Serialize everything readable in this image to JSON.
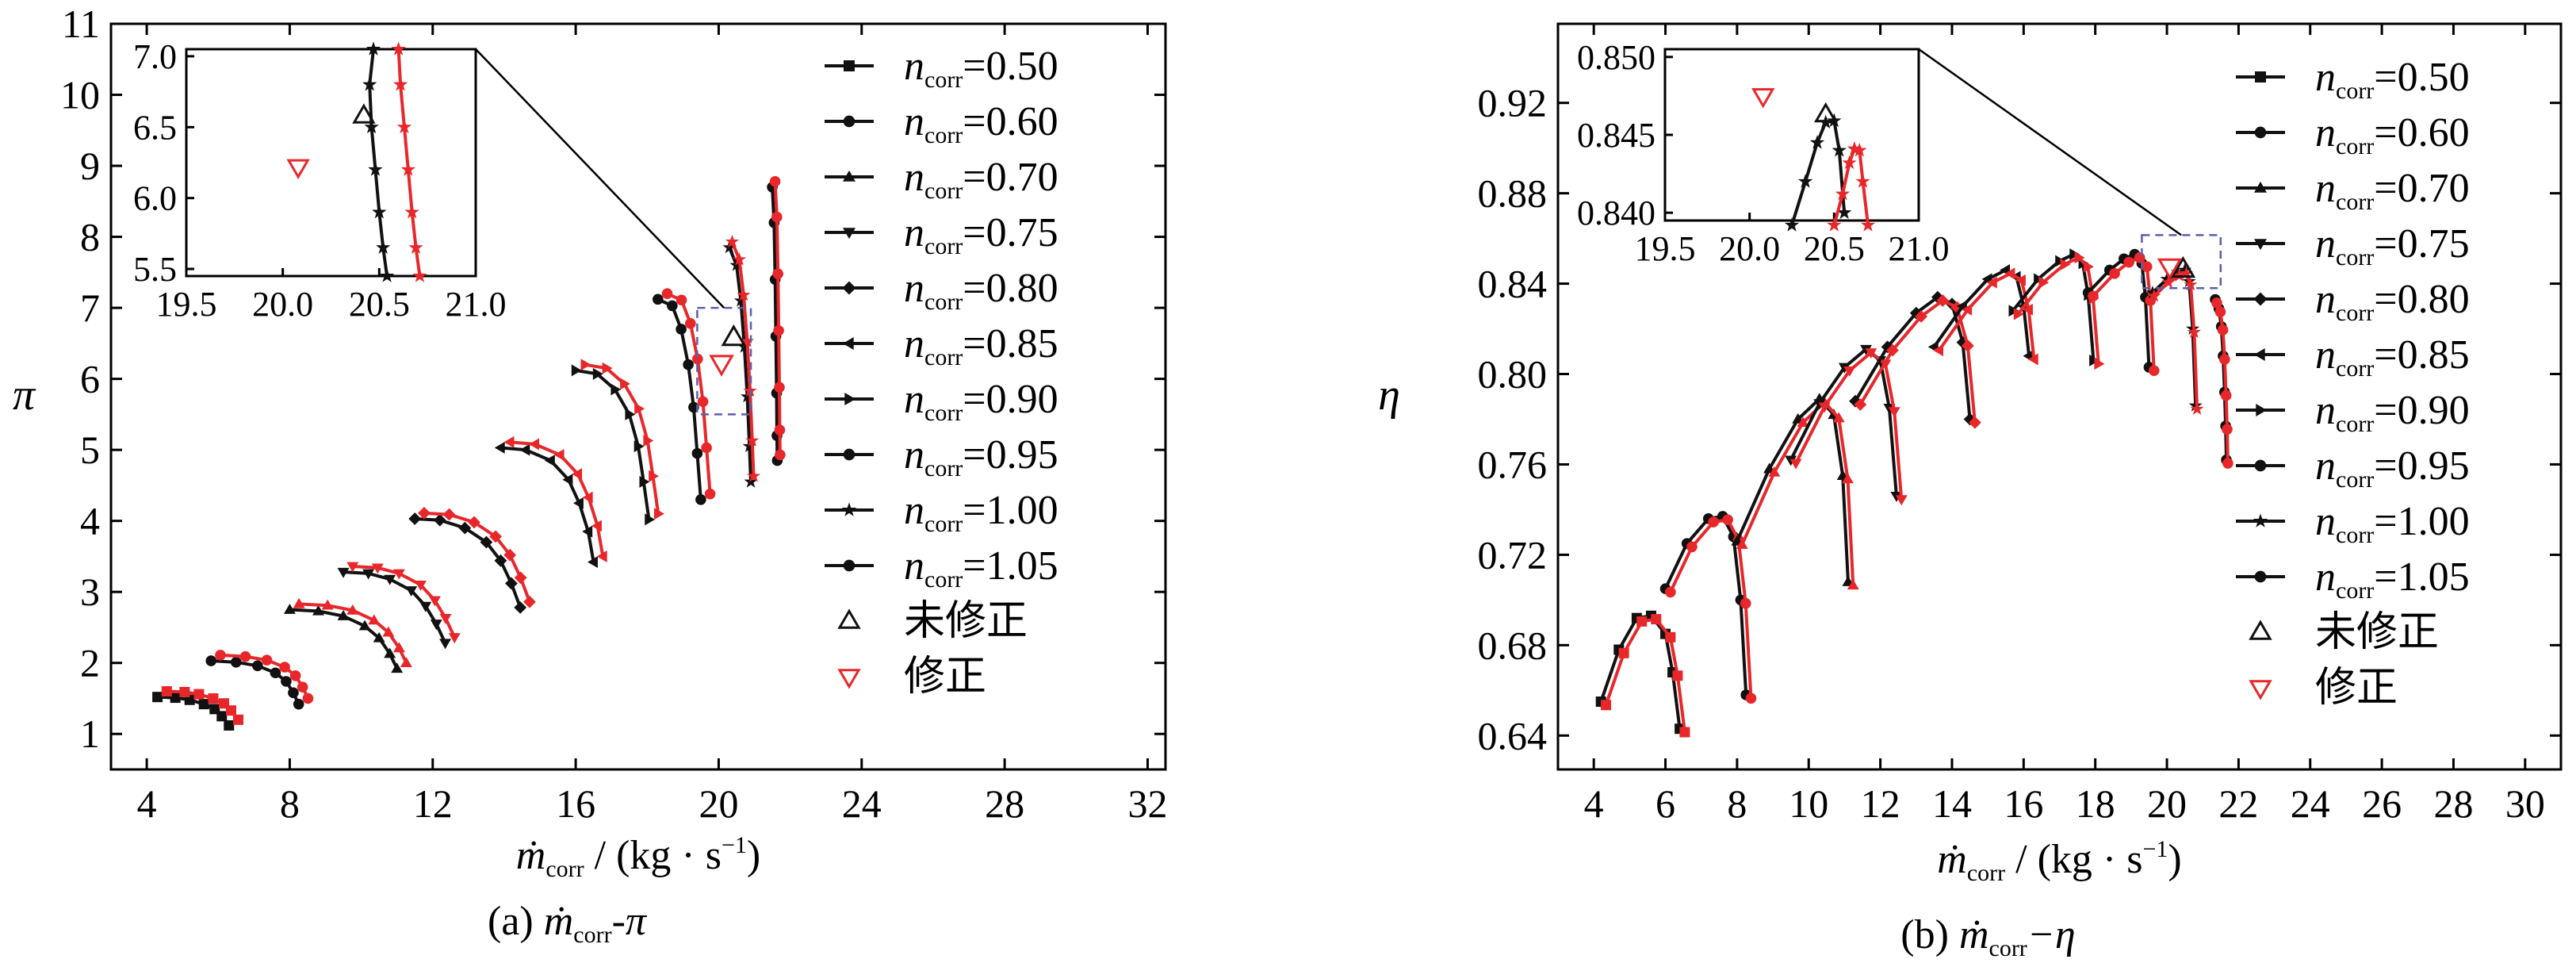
{
  "colors": {
    "uncorrected": "#111111",
    "corrected": "#e8272b",
    "frame": "#000000",
    "zoom_box": "#5b5fa8"
  },
  "legend": {
    "speed_var": "n",
    "speed_sub": "corr",
    "speeds": [
      "=0.50",
      "=0.60",
      "=0.70",
      "=0.75",
      "=0.80",
      "=0.85",
      "=0.90",
      "=0.95",
      "=1.00",
      "=1.05"
    ],
    "marker_icons": [
      "square-icon",
      "circle-icon",
      "triangle-up-icon",
      "triangle-down-icon",
      "diamond-icon",
      "triangle-left-icon",
      "triangle-right-icon",
      "circle-icon",
      "star-icon",
      "circle-icon"
    ],
    "uncorrected_label": "未修正",
    "corrected_label": "修正"
  },
  "chart_data": [
    {
      "id": "a",
      "type": "line",
      "caption_prefix": "(a) ",
      "caption_var": "ṁ",
      "caption_sub": "corr",
      "caption_suffix": "-π",
      "xlabel_var": "ṁ",
      "xlabel_sub": "corr",
      "xlabel_unit": " / (kg · s",
      "xlabel_exp": "−1",
      "xlabel_close": ")",
      "ylabel": "π",
      "xlim": [
        3,
        32.5
      ],
      "ylim": [
        0.5,
        11
      ],
      "xticks": [
        "4",
        "8",
        "12",
        "16",
        "20",
        "24",
        "28",
        "32"
      ],
      "yticks": [
        "1",
        "2",
        "3",
        "4",
        "5",
        "6",
        "7",
        "8",
        "9",
        "10",
        "11"
      ],
      "series": [
        {
          "speed": "0.50",
          "x": [
            4.3,
            4.8,
            5.2,
            5.6,
            5.9,
            6.1,
            6.3
          ],
          "y": [
            1.52,
            1.51,
            1.48,
            1.42,
            1.35,
            1.25,
            1.12
          ]
        },
        {
          "speed": "0.60",
          "x": [
            5.8,
            6.5,
            7.1,
            7.6,
            7.9,
            8.1,
            8.25
          ],
          "y": [
            2.03,
            2.01,
            1.96,
            1.86,
            1.74,
            1.58,
            1.42
          ]
        },
        {
          "speed": "0.70",
          "x": [
            8.0,
            8.8,
            9.5,
            10.1,
            10.5,
            10.8,
            11.0
          ],
          "y": [
            2.75,
            2.73,
            2.66,
            2.52,
            2.35,
            2.13,
            1.92
          ]
        },
        {
          "speed": "0.75",
          "x": [
            9.5,
            10.2,
            10.8,
            11.4,
            11.8,
            12.1,
            12.35
          ],
          "y": [
            3.28,
            3.26,
            3.18,
            3.02,
            2.8,
            2.55,
            2.28
          ]
        },
        {
          "speed": "0.80",
          "x": [
            11.5,
            12.2,
            12.9,
            13.5,
            13.9,
            14.2,
            14.45
          ],
          "y": [
            4.03,
            4.01,
            3.9,
            3.7,
            3.44,
            3.12,
            2.78
          ]
        },
        {
          "speed": "0.85",
          "x": [
            13.9,
            14.6,
            15.3,
            15.8,
            16.1,
            16.35,
            16.5
          ],
          "y": [
            5.03,
            5.0,
            4.85,
            4.58,
            4.25,
            3.85,
            3.42
          ]
        },
        {
          "speed": "0.90",
          "x": [
            16.0,
            16.6,
            17.1,
            17.5,
            17.75,
            17.9,
            18.05
          ],
          "y": [
            6.12,
            6.07,
            5.85,
            5.5,
            5.05,
            4.55,
            4.02
          ]
        },
        {
          "speed": "0.95",
          "x": [
            18.3,
            18.7,
            18.95,
            19.15,
            19.3,
            19.4,
            19.5
          ],
          "y": [
            7.12,
            7.03,
            6.7,
            6.2,
            5.6,
            4.95,
            4.3
          ]
        },
        {
          "speed": "1.00",
          "x": [
            20.3,
            20.5,
            20.62,
            20.72,
            20.8,
            20.86,
            20.9
          ],
          "y": [
            7.85,
            7.6,
            7.1,
            6.45,
            5.75,
            5.05,
            4.55
          ]
        },
        {
          "speed": "1.05",
          "x": [
            21.5,
            21.55,
            21.58,
            21.6,
            21.62,
            21.63,
            21.64
          ],
          "y": [
            8.7,
            8.2,
            7.4,
            6.6,
            5.8,
            5.2,
            4.85
          ]
        }
      ],
      "uncorrected_point": {
        "x": 20.42,
        "y": 6.58
      },
      "corrected_point": {
        "x": 20.08,
        "y": 6.22
      },
      "zoom_box": {
        "x": [
          19.4,
          20.9
        ],
        "y": [
          5.5,
          7.0
        ]
      },
      "inset": {
        "xlim": [
          19.5,
          21.0
        ],
        "ylim": [
          5.45,
          7.05
        ],
        "xticks": [
          "19.5",
          "20.0",
          "20.5",
          "21.0"
        ],
        "yticks": [
          "5.5",
          "6.0",
          "6.5",
          "7.0"
        ],
        "black_x": [
          20.47,
          20.45,
          20.46,
          20.48,
          20.5,
          20.52,
          20.54
        ],
        "red_x": [
          20.6,
          20.61,
          20.63,
          20.65,
          20.67,
          20.69,
          20.71
        ],
        "curve_y": [
          7.05,
          6.8,
          6.5,
          6.2,
          5.9,
          5.65,
          5.45
        ]
      }
    },
    {
      "id": "b",
      "type": "line",
      "caption_prefix": "(b) ",
      "caption_var": "ṁ",
      "caption_sub": "corr",
      "caption_suffix": "−η",
      "xlabel_var": "ṁ",
      "xlabel_sub": "corr",
      "xlabel_unit": " / (kg · s",
      "xlabel_exp": "−1",
      "xlabel_close": ")",
      "ylabel": "η",
      "xlim": [
        3,
        31
      ],
      "ylim": [
        0.625,
        0.955
      ],
      "xticks": [
        "4",
        "6",
        "8",
        "10",
        "12",
        "14",
        "16",
        "18",
        "20",
        "22",
        "24",
        "26",
        "28",
        "30"
      ],
      "yticks": [
        "0.64",
        "0.68",
        "0.72",
        "0.76",
        "0.80",
        "0.84",
        "0.88",
        "0.92"
      ],
      "series": [
        {
          "speed": "0.50",
          "x": [
            4.2,
            4.7,
            5.2,
            5.6,
            6.0,
            6.2,
            6.4
          ],
          "y": [
            0.655,
            0.678,
            0.692,
            0.693,
            0.685,
            0.668,
            0.643
          ]
        },
        {
          "speed": "0.60",
          "x": [
            6.0,
            6.6,
            7.2,
            7.6,
            7.9,
            8.1,
            8.25
          ],
          "y": [
            0.705,
            0.725,
            0.736,
            0.737,
            0.728,
            0.7,
            0.658
          ]
        },
        {
          "speed": "0.70",
          "x": [
            8.0,
            8.9,
            9.7,
            10.3,
            10.7,
            10.95,
            11.1
          ],
          "y": [
            0.726,
            0.758,
            0.78,
            0.789,
            0.782,
            0.755,
            0.708
          ]
        },
        {
          "speed": "0.75",
          "x": [
            9.5,
            10.3,
            11.0,
            11.6,
            12.0,
            12.25,
            12.45
          ],
          "y": [
            0.762,
            0.787,
            0.803,
            0.811,
            0.806,
            0.785,
            0.746
          ]
        },
        {
          "speed": "0.80",
          "x": [
            11.3,
            12.2,
            13.0,
            13.6,
            14.0,
            14.3,
            14.5
          ],
          "y": [
            0.788,
            0.812,
            0.827,
            0.834,
            0.831,
            0.814,
            0.78
          ]
        },
        {
          "speed": "0.85",
          "x": [
            13.5,
            14.3,
            15.0,
            15.5,
            15.8,
            16.0,
            16.15
          ],
          "y": [
            0.812,
            0.83,
            0.842,
            0.846,
            0.843,
            0.83,
            0.808
          ]
        },
        {
          "speed": "0.90",
          "x": [
            15.7,
            16.4,
            17.0,
            17.4,
            17.65,
            17.8,
            17.95
          ],
          "y": [
            0.828,
            0.842,
            0.85,
            0.853,
            0.849,
            0.835,
            0.806
          ]
        },
        {
          "speed": "0.95",
          "x": [
            17.8,
            18.4,
            18.8,
            19.1,
            19.3,
            19.4,
            19.5
          ],
          "y": [
            0.836,
            0.846,
            0.851,
            0.853,
            0.849,
            0.834,
            0.803
          ]
        },
        {
          "speed": "1.00",
          "x": [
            19.6,
            20.0,
            20.3,
            20.5,
            20.62,
            20.72,
            20.8
          ],
          "y": [
            0.836,
            0.842,
            0.845,
            0.846,
            0.841,
            0.82,
            0.786
          ]
        },
        {
          "speed": "1.05",
          "x": [
            21.35,
            21.45,
            21.52,
            21.57,
            21.61,
            21.64,
            21.66
          ],
          "y": [
            0.833,
            0.829,
            0.821,
            0.808,
            0.792,
            0.777,
            0.762
          ]
        }
      ],
      "uncorrected_point": {
        "x": 20.45,
        "y": 0.8463
      },
      "corrected_point": {
        "x": 20.08,
        "y": 0.8475
      },
      "zoom_box": {
        "x": [
          19.3,
          21.5
        ],
        "y": [
          0.838,
          0.8615
        ]
      },
      "inset": {
        "xlim": [
          19.5,
          21.0
        ],
        "ylim": [
          0.8395,
          0.8505
        ],
        "xticks": [
          "19.5",
          "20.0",
          "20.5",
          "21.0"
        ],
        "yticks": [
          "0.840",
          "0.845",
          "0.850"
        ],
        "black_x": [
          20.25,
          20.33,
          20.4,
          20.45,
          20.5,
          20.53,
          20.56
        ],
        "black_y": [
          0.8392,
          0.842,
          0.8445,
          0.8458,
          0.8459,
          0.844,
          0.84
        ],
        "red_x": [
          20.5,
          20.55,
          20.59,
          20.62,
          20.65,
          20.67,
          20.7
        ],
        "red_y": [
          0.8392,
          0.8412,
          0.8432,
          0.8441,
          0.844,
          0.842,
          0.8392
        ]
      }
    }
  ]
}
